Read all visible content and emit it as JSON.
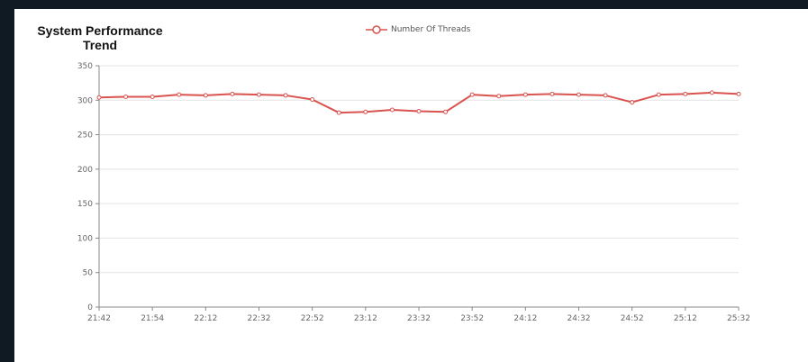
{
  "chart_data": {
    "type": "line",
    "title": "System Performance Trend",
    "xlabel": "",
    "ylabel": "",
    "ylim": [
      0,
      350
    ],
    "y_ticks": [
      "0",
      "50",
      "100",
      "150",
      "200",
      "250",
      "300",
      "350"
    ],
    "x_tick_labels": [
      "21:42",
      "21:54",
      "22:12",
      "22:32",
      "22:52",
      "23:12",
      "23:32",
      "23:52",
      "24:12",
      "24:32",
      "24:52",
      "25:12",
      "25:32"
    ],
    "grid": "horizontal",
    "legend_position": "top-center",
    "series": [
      {
        "name": "Number Of Threads",
        "color": "#d9534f",
        "values": [
          304,
          305,
          305,
          308,
          307,
          309,
          308,
          307,
          301,
          282,
          283,
          286,
          284,
          283,
          308,
          306,
          308,
          309,
          308,
          307,
          297,
          308,
          309,
          311,
          309
        ]
      }
    ]
  }
}
